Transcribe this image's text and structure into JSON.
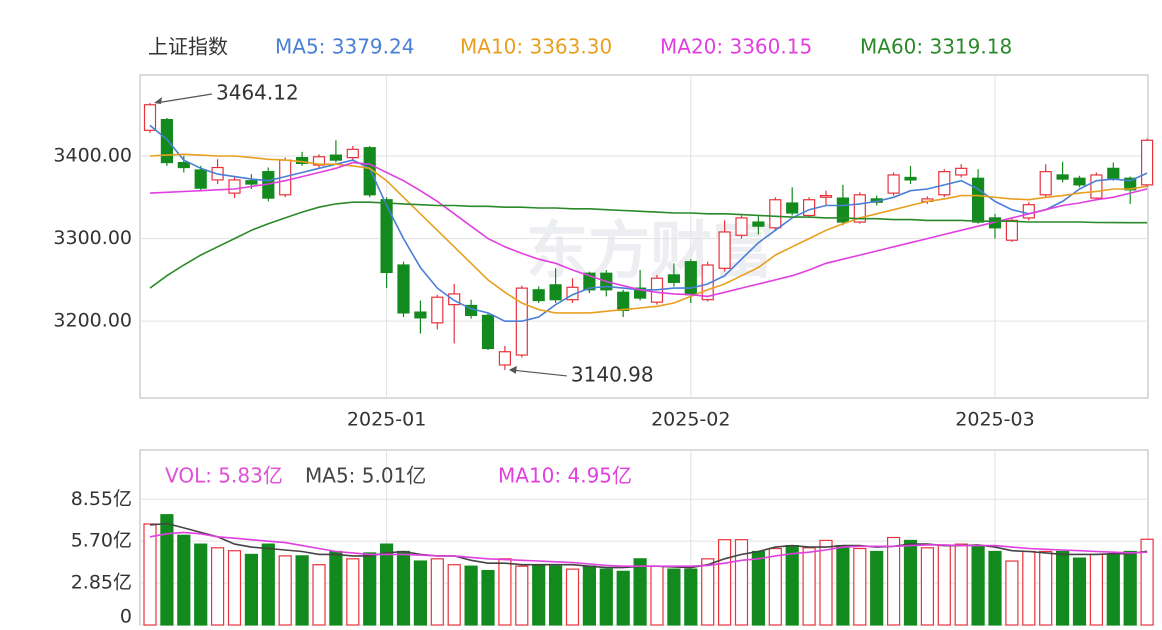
{
  "chart_data": [
    {
      "type": "candlestick",
      "title": "上证指数",
      "watermark": "东方财富",
      "up_color": "#e8323c",
      "down_color": "#138a1e",
      "grid": true,
      "categories": [
        null,
        null,
        null,
        null,
        null,
        null,
        null,
        null,
        null,
        null,
        null,
        null,
        null,
        null,
        "2025-01",
        null,
        null,
        null,
        null,
        null,
        null,
        null,
        null,
        null,
        null,
        null,
        null,
        null,
        null,
        null,
        null,
        null,
        "2025-02",
        null,
        null,
        null,
        null,
        null,
        null,
        null,
        null,
        null,
        null,
        null,
        null,
        null,
        null,
        null,
        null,
        null,
        "2025-03",
        null,
        null,
        null,
        null,
        null,
        null,
        null,
        null,
        null
      ],
      "open": [
        3431,
        3444,
        3392,
        3383,
        3371,
        3355,
        3370,
        3381,
        3353,
        3398,
        3389,
        3401,
        3398,
        3410,
        3347,
        3268,
        3211,
        3198,
        3220,
        3219,
        3207,
        3147,
        3159,
        3238,
        3244,
        3226,
        3258,
        3258,
        3235,
        3240,
        3223,
        3256,
        3272,
        3226,
        3264,
        3304,
        3320,
        3313,
        3343,
        3328,
        3350,
        3349,
        3320,
        3348,
        3355,
        3374,
        3345,
        3353,
        3377,
        3373,
        3325,
        3298,
        3325,
        3353,
        3377,
        3373,
        3349,
        3385,
        3373,
        3365
      ],
      "high": [
        3464.12,
        3446,
        3400,
        3388,
        3396,
        3376,
        3378,
        3386,
        3398,
        3405,
        3402,
        3419,
        3412,
        3412,
        3350,
        3272,
        3225,
        3232,
        3245,
        3226,
        3210,
        3170,
        3243,
        3242,
        3264,
        3252,
        3260,
        3262,
        3238,
        3262,
        3256,
        3270,
        3275,
        3272,
        3322,
        3328,
        3327,
        3350,
        3362,
        3350,
        3358,
        3365,
        3356,
        3352,
        3380,
        3388,
        3351,
        3384,
        3390,
        3384,
        3330,
        3325,
        3344,
        3390,
        3393,
        3376,
        3380,
        3392,
        3375,
        3421
      ],
      "low": [
        3428,
        3388,
        3380,
        3357,
        3366,
        3349,
        3360,
        3345,
        3350,
        3388,
        3385,
        3392,
        3394,
        3350,
        3240,
        3205,
        3185,
        3190,
        3173,
        3203,
        3165,
        3140.98,
        3156,
        3222,
        3222,
        3222,
        3234,
        3230,
        3205,
        3225,
        3220,
        3242,
        3222,
        3224,
        3260,
        3300,
        3305,
        3310,
        3328,
        3325,
        3340,
        3316,
        3318,
        3340,
        3352,
        3366,
        3342,
        3350,
        3374,
        3318,
        3300,
        3296,
        3322,
        3350,
        3368,
        3362,
        3346,
        3370,
        3342,
        3362
      ],
      "close": [
        3462,
        3392,
        3386,
        3361,
        3386,
        3371,
        3366,
        3349,
        3395,
        3391,
        3399,
        3395,
        3408,
        3353,
        3259,
        3210,
        3204,
        3229,
        3233,
        3207,
        3167,
        3163,
        3240,
        3225,
        3226,
        3241,
        3238,
        3238,
        3213,
        3228,
        3252,
        3247,
        3232,
        3268,
        3308,
        3325,
        3315,
        3347,
        3331,
        3347,
        3352,
        3320,
        3353,
        3344,
        3377,
        3371,
        3348,
        3381,
        3385,
        3320,
        3313,
        3322,
        3341,
        3381,
        3372,
        3365,
        3377,
        3373,
        3359,
        3419
      ],
      "series": [
        {
          "name": "MA5: 3379.24",
          "color": "#4a7fd6",
          "values": [
            3437,
            3420,
            3395,
            3385,
            3378,
            3375,
            3372,
            3370,
            3375,
            3380,
            3385,
            3390,
            3395,
            3385,
            3340,
            3300,
            3265,
            3240,
            3225,
            3215,
            3210,
            3200,
            3200,
            3205,
            3220,
            3232,
            3240,
            3242,
            3240,
            3238,
            3238,
            3240,
            3240,
            3245,
            3255,
            3275,
            3295,
            3310,
            3325,
            3335,
            3340,
            3340,
            3342,
            3345,
            3350,
            3358,
            3360,
            3365,
            3370,
            3360,
            3345,
            3335,
            3330,
            3335,
            3345,
            3360,
            3370,
            3372,
            3370,
            3379.24
          ]
        },
        {
          "name": "MA10: 3363.30",
          "color": "#e8a020",
          "values": [
            3400,
            3401,
            3402,
            3401,
            3400,
            3400,
            3398,
            3396,
            3395,
            3393,
            3390,
            3390,
            3388,
            3385,
            3370,
            3350,
            3330,
            3310,
            3290,
            3270,
            3250,
            3235,
            3222,
            3214,
            3210,
            3210,
            3210,
            3212,
            3214,
            3216,
            3218,
            3222,
            3230,
            3238,
            3245,
            3255,
            3265,
            3280,
            3290,
            3300,
            3310,
            3318,
            3325,
            3330,
            3335,
            3340,
            3345,
            3348,
            3352,
            3352,
            3350,
            3348,
            3347,
            3350,
            3352,
            3355,
            3357,
            3360,
            3360,
            3363.3
          ]
        },
        {
          "name": "MA20: 3360.15",
          "color": "#e040e0",
          "values": [
            3355,
            3356,
            3357,
            3358,
            3359,
            3360,
            3363,
            3366,
            3370,
            3375,
            3380,
            3385,
            3392,
            3390,
            3380,
            3370,
            3358,
            3345,
            3330,
            3315,
            3300,
            3290,
            3282,
            3275,
            3270,
            3262,
            3255,
            3248,
            3243,
            3238,
            3235,
            3233,
            3232,
            3230,
            3235,
            3240,
            3245,
            3250,
            3255,
            3262,
            3270,
            3275,
            3280,
            3285,
            3290,
            3295,
            3300,
            3305,
            3310,
            3315,
            3320,
            3325,
            3330,
            3335,
            3340,
            3343,
            3347,
            3350,
            3355,
            3360.15
          ]
        },
        {
          "name": "MA60: 3319.18",
          "color": "#2a8a2a",
          "values": [
            3240,
            3255,
            3268,
            3280,
            3290,
            3300,
            3310,
            3318,
            3325,
            3332,
            3338,
            3342,
            3344,
            3344,
            3343,
            3342,
            3341,
            3340,
            3340,
            3339,
            3339,
            3338,
            3338,
            3337,
            3337,
            3336,
            3336,
            3335,
            3334,
            3333,
            3332,
            3331,
            3331,
            3330,
            3330,
            3329,
            3328,
            3327,
            3326,
            3326,
            3325,
            3325,
            3324,
            3324,
            3323,
            3323,
            3322,
            3322,
            3322,
            3321,
            3321,
            3321,
            3320,
            3320,
            3320,
            3320,
            3319.5,
            3319.3,
            3319.2,
            3319.18
          ]
        }
      ],
      "annotations": [
        3464.12,
        3140.98
      ],
      "ylim": [
        3107,
        3498
      ],
      "yticks": [
        {
          "value": 3200,
          "label": "3200.00"
        },
        {
          "value": 3300,
          "label": "3300.00"
        },
        {
          "value": 3400,
          "label": "3400.00"
        }
      ]
    },
    {
      "type": "bar",
      "name": "VOL: 5.83亿",
      "label_color": "#e04fd8",
      "grid": true,
      "values": [
        6.87,
        7.5,
        6.1,
        5.5,
        5.25,
        5.05,
        4.8,
        5.5,
        4.7,
        4.7,
        4.1,
        5.0,
        4.5,
        4.9,
        5.5,
        5.0,
        4.35,
        4.5,
        4.1,
        4.0,
        3.7,
        4.5,
        4.0,
        4.1,
        4.0,
        3.8,
        4.0,
        3.8,
        3.65,
        4.5,
        4.0,
        3.8,
        3.8,
        4.5,
        5.8,
        5.8,
        5.0,
        5.2,
        5.4,
        5.25,
        5.75,
        5.4,
        5.2,
        5.0,
        5.95,
        5.75,
        5.25,
        5.4,
        5.5,
        5.4,
        5.0,
        4.35,
        5.0,
        5.0,
        5.0,
        4.55,
        4.8,
        4.8,
        5.0,
        5.83
      ],
      "series": [
        {
          "name": "MA5: 5.01亿",
          "color": "#444444",
          "values": [
            6.8,
            6.9,
            6.6,
            6.3,
            6.0,
            5.5,
            5.3,
            5.2,
            5.1,
            5.0,
            4.8,
            4.8,
            4.7,
            4.7,
            4.9,
            5.0,
            4.8,
            4.7,
            4.7,
            4.4,
            4.2,
            4.2,
            4.1,
            4.1,
            4.1,
            4.1,
            4.0,
            3.9,
            3.9,
            4.0,
            4.0,
            3.95,
            3.9,
            4.1,
            4.5,
            4.8,
            5.0,
            5.3,
            5.4,
            5.3,
            5.3,
            5.4,
            5.4,
            5.3,
            5.35,
            5.5,
            5.5,
            5.4,
            5.4,
            5.45,
            5.3,
            5.05,
            5.0,
            4.9,
            4.8,
            4.8,
            4.8,
            4.85,
            4.85,
            5.01
          ]
        },
        {
          "name": "MA10: 4.95亿",
          "color": "#e040e0",
          "values": [
            6.0,
            6.2,
            6.3,
            6.2,
            6.0,
            5.9,
            5.8,
            5.7,
            5.6,
            5.4,
            5.2,
            5.0,
            4.9,
            4.8,
            4.8,
            4.8,
            4.75,
            4.7,
            4.7,
            4.6,
            4.5,
            4.45,
            4.4,
            4.35,
            4.3,
            4.25,
            4.15,
            4.05,
            4.0,
            4.0,
            4.0,
            4.0,
            4.0,
            4.05,
            4.2,
            4.4,
            4.5,
            4.7,
            4.85,
            4.95,
            5.1,
            5.3,
            5.35,
            5.35,
            5.35,
            5.4,
            5.45,
            5.45,
            5.4,
            5.4,
            5.4,
            5.3,
            5.2,
            5.15,
            5.1,
            5.05,
            5.0,
            4.95,
            4.9,
            4.95
          ]
        }
      ],
      "ylim": [
        0,
        11.9
      ],
      "yticks": [
        0,
        {
          "value": 2.85,
          "label": "2.85亿"
        },
        {
          "value": 5.7,
          "label": "5.70亿"
        },
        {
          "value": 8.55,
          "label": "8.55亿"
        }
      ]
    }
  ]
}
